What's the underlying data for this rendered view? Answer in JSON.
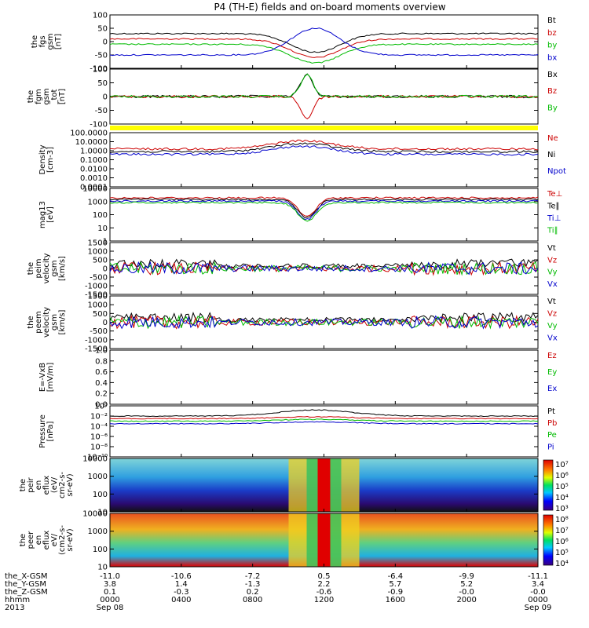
{
  "chart_data": {
    "type": "line",
    "title": "P4 (TH-E) fields and on-board moments overview",
    "x_ticks": [
      "0000",
      "0400",
      "0800",
      "1200",
      "1600",
      "2000",
      "0000"
    ],
    "date_start": "Sep 08",
    "date_end": "Sep 09",
    "footer": {
      "rows": [
        {
          "label": "the_X-GSM",
          "values": [
            "-11.0",
            "-10.6",
            "-7.2",
            "0.5",
            "-6.4",
            "-9.9",
            "-11.1"
          ]
        },
        {
          "label": "the_Y-GSM",
          "values": [
            "3.8",
            "1.4",
            "-1.3",
            "2.2",
            "5.7",
            "5.2",
            "3.4"
          ]
        },
        {
          "label": "the_Z-GSM",
          "values": [
            "0.1",
            "-0.3",
            "0.2",
            "-0.6",
            "-0.9",
            "-0.0",
            "-0.0"
          ]
        },
        {
          "label": "hhmm",
          "values": []
        },
        {
          "label": "2013",
          "values": []
        }
      ]
    },
    "panels": [
      {
        "id": "fgs",
        "ylabel": [
          "the",
          "fgs",
          "gsm",
          "[nT]"
        ],
        "yticks": [
          "100",
          "50",
          "0",
          "-50",
          "-100"
        ],
        "ylim": [
          -100,
          100
        ],
        "legend": [
          {
            "name": "Bt",
            "color": "#000000"
          },
          {
            "name": "bz",
            "color": "#cc0000"
          },
          {
            "name": "by",
            "color": "#00bb00"
          },
          {
            "name": "bx",
            "color": "#0000cc"
          }
        ]
      },
      {
        "id": "fgm",
        "ylabel": [
          "the",
          "fgm",
          "gsm",
          "_tot",
          "[nT]"
        ],
        "yticks": [
          "100",
          "50",
          "0",
          "-50",
          "-100"
        ],
        "ylim": [
          -120,
          100
        ],
        "legend": [
          {
            "name": "Bx",
            "color": "#000000"
          },
          {
            "name": "Bz",
            "color": "#cc0000"
          },
          {
            "name": "By",
            "color": "#00bb00"
          }
        ]
      },
      {
        "id": "density",
        "ylabel": [
          "Density",
          "[cm-3]"
        ],
        "yticks": [
          "100.0000",
          "10.0000",
          "1.0000",
          "0.1000",
          "0.0100",
          "0.0010",
          "0.0001"
        ],
        "ylim": [
          0.0001,
          100
        ],
        "legend": [
          {
            "name": "Ne",
            "color": "#cc0000"
          },
          {
            "name": "Ni",
            "color": "#000000"
          },
          {
            "name": "Npot",
            "color": "#0000cc"
          }
        ]
      },
      {
        "id": "temp",
        "ylabel": [
          "mag13",
          "[eV]"
        ],
        "yticks": [
          "10000",
          "1000",
          "100",
          "10",
          "1"
        ],
        "ylim": [
          1,
          10000
        ],
        "legend": [
          {
            "name": "Te⊥",
            "color": "#cc0000"
          },
          {
            "name": "Te∥",
            "color": "#000000"
          },
          {
            "name": "Ti⊥",
            "color": "#0000cc"
          },
          {
            "name": "Ti∥",
            "color": "#00bb00"
          }
        ]
      },
      {
        "id": "peim",
        "ylabel": [
          "the",
          "peim",
          "velocity",
          "gsm",
          "[km/s]"
        ],
        "yticks": [
          "1500",
          "1000",
          "500",
          "0",
          "-500",
          "-1000",
          "-1500"
        ],
        "ylim": [
          -1500,
          1500
        ],
        "legend": [
          {
            "name": "Vt",
            "color": "#000000"
          },
          {
            "name": "Vz",
            "color": "#cc0000"
          },
          {
            "name": "Vy",
            "color": "#00bb00"
          },
          {
            "name": "Vx",
            "color": "#0000cc"
          }
        ]
      },
      {
        "id": "peem",
        "ylabel": [
          "the",
          "peem",
          "velocity",
          "gsm",
          "[km/s]"
        ],
        "yticks": [
          "1500",
          "1000",
          "500",
          "0",
          "-500",
          "-1000",
          "-1500"
        ],
        "ylim": [
          -1500,
          1500
        ],
        "legend": [
          {
            "name": "Vt",
            "color": "#000000"
          },
          {
            "name": "Vz",
            "color": "#cc0000"
          },
          {
            "name": "Vy",
            "color": "#00bb00"
          },
          {
            "name": "Vx",
            "color": "#0000cc"
          }
        ]
      },
      {
        "id": "efield",
        "ylabel": [
          "E=-VxB",
          "[mV/m]"
        ],
        "yticks": [
          "1.0",
          "0.8",
          "0.6",
          "0.4",
          "0.2",
          "0.0"
        ],
        "ylim": [
          0,
          1
        ],
        "legend": [
          {
            "name": "Ez",
            "color": "#cc0000"
          },
          {
            "name": "Ey",
            "color": "#00bb00"
          },
          {
            "name": "Ex",
            "color": "#0000cc"
          }
        ]
      },
      {
        "id": "pressure",
        "ylabel": [
          "Pressure",
          "[nPa]"
        ],
        "yticks": [
          "10⁰",
          "10⁻²",
          "10⁻⁴",
          "10⁻⁶",
          "10⁻⁸",
          "10⁻¹⁰"
        ],
        "ylim": [
          1e-10,
          1
        ],
        "legend": [
          {
            "name": "Pt",
            "color": "#000000"
          },
          {
            "name": "Pb",
            "color": "#cc0000"
          },
          {
            "name": "Pe",
            "color": "#00bb00"
          },
          {
            "name": "Pi",
            "color": "#0000cc"
          }
        ]
      },
      {
        "id": "peir",
        "ylabel": [
          "the",
          "peir",
          "en",
          "eflux",
          "(eV/",
          "cm2-s-",
          "sr-eV)"
        ],
        "yticks": [
          "10000",
          "1000",
          "100",
          "10"
        ],
        "ylim": [
          10,
          10000
        ],
        "colorbar": [
          "10⁷",
          "10⁶",
          "10⁵",
          "10⁴",
          "10³"
        ]
      },
      {
        "id": "peer",
        "ylabel": [
          "the",
          "peer",
          "en",
          "eflux",
          "eV/",
          "(cm2-s-",
          "sr-eV)"
        ],
        "yticks": [
          "10000",
          "1000",
          "100",
          "10"
        ],
        "ylim": [
          10,
          10000
        ],
        "colorbar": [
          "10⁸",
          "10⁷",
          "10⁶",
          "10⁵",
          "10⁴"
        ]
      }
    ]
  }
}
